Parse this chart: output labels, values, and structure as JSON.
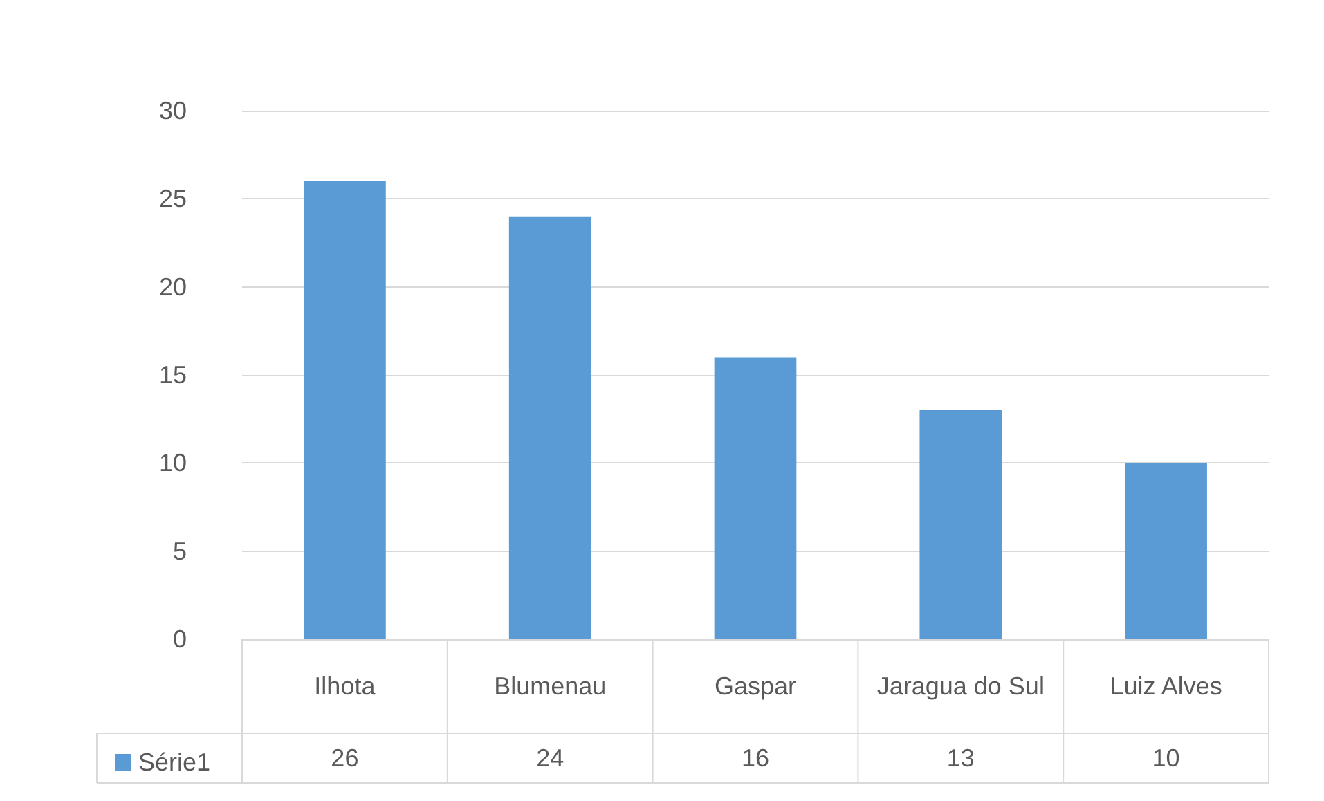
{
  "chart_data": {
    "type": "bar",
    "categories": [
      "Ilhota",
      "Blumenau",
      "Gaspar",
      "Jaragua do Sul",
      "Luiz Alves"
    ],
    "series": [
      {
        "name": "Série1",
        "color": "#5b9bd5",
        "values": [
          26,
          24,
          16,
          13,
          10
        ]
      }
    ],
    "ylim": [
      0,
      30
    ],
    "yticks": [
      0,
      5,
      10,
      15,
      20,
      25,
      30
    ],
    "grid": "y",
    "legend": "bottom left",
    "data_labels": true
  }
}
